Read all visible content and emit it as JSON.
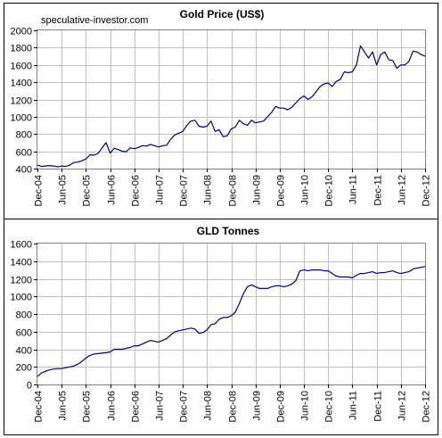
{
  "watermark": "speculative-investor.com",
  "colors": {
    "series": "#000080",
    "grid": "#c0c0c0",
    "panel_border": "#000000"
  },
  "chart_data": [
    {
      "type": "line",
      "title": "Gold  Price (US$)",
      "xlabel": "",
      "ylabel": "",
      "xlim": [
        "2004-12",
        "2012-12"
      ],
      "ylim": [
        400,
        2000
      ],
      "yticks": [
        400,
        600,
        800,
        1000,
        1200,
        1400,
        1600,
        1800,
        2000
      ],
      "xtick_labels": [
        "Dec-04",
        "Jun-05",
        "Dec-05",
        "Jun-06",
        "Dec-06",
        "Jun-07",
        "Dec-07",
        "Jun-08",
        "Dec-08",
        "Jun-09",
        "Dec-09",
        "Jun-10",
        "Dec-10",
        "Jun-11",
        "Dec-11",
        "Jun-12",
        "Dec-12"
      ],
      "grid": true,
      "legend": "none",
      "series": [
        {
          "color": "#000080",
          "x": [
            "2004-12",
            "2005-01",
            "2005-02",
            "2005-03",
            "2005-04",
            "2005-05",
            "2005-06",
            "2005-07",
            "2005-08",
            "2005-09",
            "2005-10",
            "2005-11",
            "2005-12",
            "2006-01",
            "2006-02",
            "2006-03",
            "2006-04",
            "2006-05",
            "2006-06",
            "2006-07",
            "2006-08",
            "2006-09",
            "2006-10",
            "2006-11",
            "2006-12",
            "2007-01",
            "2007-02",
            "2007-03",
            "2007-04",
            "2007-05",
            "2007-06",
            "2007-07",
            "2007-08",
            "2007-09",
            "2007-10",
            "2007-11",
            "2007-12",
            "2008-01",
            "2008-02",
            "2008-03",
            "2008-04",
            "2008-05",
            "2008-06",
            "2008-07",
            "2008-08",
            "2008-09",
            "2008-10",
            "2008-11",
            "2008-12",
            "2009-01",
            "2009-02",
            "2009-03",
            "2009-04",
            "2009-05",
            "2009-06",
            "2009-07",
            "2009-08",
            "2009-09",
            "2009-10",
            "2009-11",
            "2009-12",
            "2010-01",
            "2010-02",
            "2010-03",
            "2010-04",
            "2010-05",
            "2010-06",
            "2010-07",
            "2010-08",
            "2010-09",
            "2010-10",
            "2010-11",
            "2010-12",
            "2011-01",
            "2011-02",
            "2011-03",
            "2011-04",
            "2011-05",
            "2011-06",
            "2011-07",
            "2011-08",
            "2011-09",
            "2011-10",
            "2011-11",
            "2011-12",
            "2012-01",
            "2012-02",
            "2012-03",
            "2012-04",
            "2012-05",
            "2012-06",
            "2012-07",
            "2012-08",
            "2012-09",
            "2012-10",
            "2012-11",
            "2012-12"
          ],
          "y": [
            440,
            425,
            430,
            435,
            430,
            420,
            430,
            425,
            440,
            470,
            475,
            490,
            510,
            560,
            555,
            575,
            640,
            700,
            580,
            635,
            620,
            600,
            595,
            640,
            630,
            645,
            665,
            660,
            680,
            665,
            650,
            665,
            670,
            740,
            790,
            810,
            830,
            900,
            950,
            960,
            890,
            880,
            890,
            950,
            830,
            850,
            770,
            780,
            860,
            880,
            960,
            920,
            900,
            960,
            930,
            940,
            950,
            1000,
            1050,
            1120,
            1100,
            1100,
            1080,
            1110,
            1160,
            1210,
            1240,
            1200,
            1230,
            1290,
            1350,
            1380,
            1390,
            1350,
            1410,
            1430,
            1520,
            1510,
            1520,
            1600,
            1820,
            1750,
            1680,
            1750,
            1600,
            1720,
            1750,
            1660,
            1650,
            1560,
            1600,
            1600,
            1640,
            1760,
            1750,
            1720,
            1700
          ]
        }
      ]
    },
    {
      "type": "line",
      "title": "GLD  Tonnes",
      "xlabel": "",
      "ylabel": "",
      "xlim": [
        "2004-12",
        "2012-12"
      ],
      "ylim": [
        0,
        1600
      ],
      "yticks": [
        0,
        200,
        400,
        600,
        800,
        1000,
        1200,
        1400,
        1600
      ],
      "xtick_labels": [
        "Dec-04",
        "Jun-05",
        "Dec-05",
        "Jun-06",
        "Dec-06",
        "Jun-07",
        "Dec-07",
        "Jun-08",
        "Dec-08",
        "Jun-09",
        "Dec-09",
        "Jun-10",
        "Dec-10",
        "Jun-11",
        "Dec-11",
        "Jun-12",
        "Dec-12"
      ],
      "grid": true,
      "legend": "none",
      "series": [
        {
          "color": "#000080",
          "x": [
            "2004-12",
            "2005-01",
            "2005-02",
            "2005-03",
            "2005-04",
            "2005-05",
            "2005-06",
            "2005-07",
            "2005-08",
            "2005-09",
            "2005-10",
            "2005-11",
            "2005-12",
            "2006-01",
            "2006-02",
            "2006-03",
            "2006-04",
            "2006-05",
            "2006-06",
            "2006-07",
            "2006-08",
            "2006-09",
            "2006-10",
            "2006-11",
            "2006-12",
            "2007-01",
            "2007-02",
            "2007-03",
            "2007-04",
            "2007-05",
            "2007-06",
            "2007-07",
            "2007-08",
            "2007-09",
            "2007-10",
            "2007-11",
            "2007-12",
            "2008-01",
            "2008-02",
            "2008-03",
            "2008-04",
            "2008-05",
            "2008-06",
            "2008-07",
            "2008-08",
            "2008-09",
            "2008-10",
            "2008-11",
            "2008-12",
            "2009-01",
            "2009-02",
            "2009-03",
            "2009-04",
            "2009-05",
            "2009-06",
            "2009-07",
            "2009-08",
            "2009-09",
            "2009-10",
            "2009-11",
            "2009-12",
            "2010-01",
            "2010-02",
            "2010-03",
            "2010-04",
            "2010-05",
            "2010-06",
            "2010-07",
            "2010-08",
            "2010-09",
            "2010-10",
            "2010-11",
            "2010-12",
            "2011-01",
            "2011-02",
            "2011-03",
            "2011-04",
            "2011-05",
            "2011-06",
            "2011-07",
            "2011-08",
            "2011-09",
            "2011-10",
            "2011-11",
            "2011-12",
            "2012-01",
            "2012-02",
            "2012-03",
            "2012-04",
            "2012-05",
            "2012-06",
            "2012-07",
            "2012-08",
            "2012-09",
            "2012-10",
            "2012-11",
            "2012-12"
          ],
          "y": [
            90,
            130,
            150,
            165,
            175,
            180,
            180,
            190,
            200,
            210,
            230,
            260,
            300,
            330,
            345,
            350,
            355,
            360,
            370,
            400,
            400,
            400,
            410,
            420,
            440,
            440,
            460,
            480,
            500,
            490,
            480,
            500,
            520,
            560,
            600,
            610,
            620,
            630,
            640,
            630,
            580,
            590,
            620,
            680,
            690,
            740,
            760,
            760,
            780,
            820,
            920,
            1030,
            1110,
            1130,
            1110,
            1090,
            1090,
            1090,
            1110,
            1120,
            1120,
            1110,
            1120,
            1140,
            1180,
            1290,
            1300,
            1290,
            1300,
            1300,
            1300,
            1290,
            1290,
            1260,
            1230,
            1220,
            1220,
            1220,
            1210,
            1240,
            1260,
            1260,
            1270,
            1280,
            1260,
            1270,
            1270,
            1280,
            1290,
            1270,
            1260,
            1270,
            1280,
            1310,
            1320,
            1330,
            1340
          ]
        }
      ]
    }
  ]
}
